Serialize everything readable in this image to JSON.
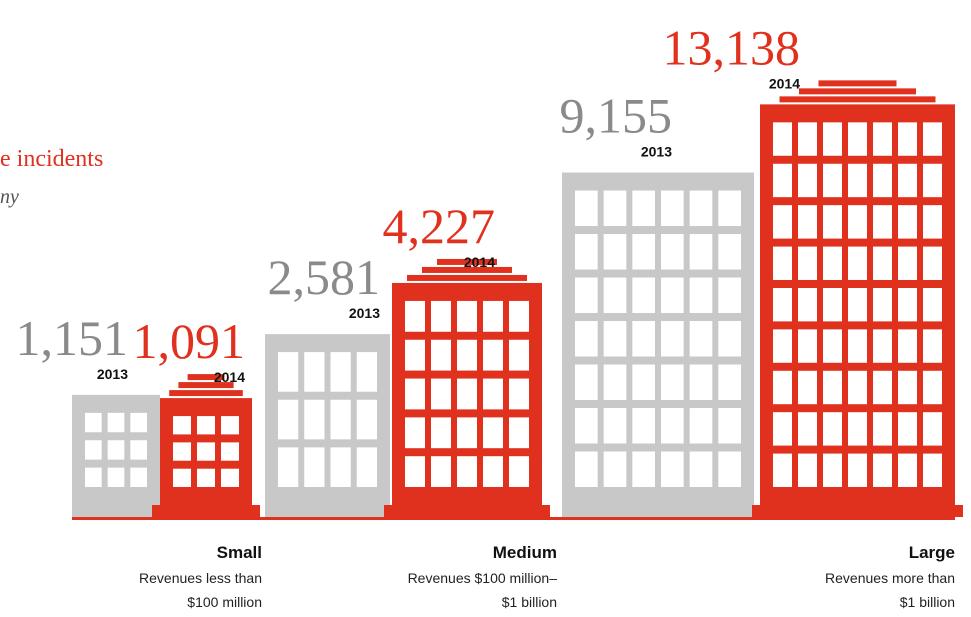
{
  "title": "e incidents",
  "subtitle": "ny",
  "chart_data": {
    "type": "bar",
    "categories": [
      "Small",
      "Medium",
      "Large"
    ],
    "descriptions": [
      [
        "Revenues less than",
        "$100 million"
      ],
      [
        "Revenues $100 million–",
        "$1 billion"
      ],
      [
        "Revenues more than",
        "$1 billion"
      ]
    ],
    "series": [
      {
        "name": "2013",
        "color": "#c8c8c8",
        "values": [
          1151,
          2581,
          9155
        ],
        "value_labels": [
          "1,151",
          "2,581",
          "9,155"
        ]
      },
      {
        "name": "2014",
        "color": "#e0301e",
        "values": [
          1091,
          4227,
          13138
        ],
        "value_labels": [
          "1,091",
          "4,227",
          "13,138"
        ]
      }
    ]
  }
}
